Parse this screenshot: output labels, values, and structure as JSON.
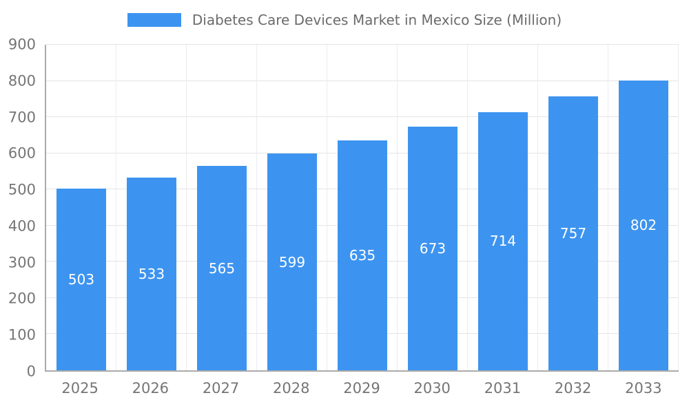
{
  "chart_data": {
    "type": "bar",
    "title": "Diabetes Care Devices Market in Mexico Size (Million)",
    "categories": [
      "2025",
      "2026",
      "2027",
      "2028",
      "2029",
      "2030",
      "2031",
      "2032",
      "2033"
    ],
    "values": [
      503,
      533,
      565,
      599,
      635,
      673,
      714,
      757,
      802
    ],
    "xlabel": "",
    "ylabel": "",
    "ylim": [
      0,
      900
    ],
    "ytick_step": 100,
    "grid": true,
    "legend_position": "top-center",
    "bar_color": "#3d94f0",
    "bar_label_color": "#ffffff",
    "axis_text_color": "#757575"
  }
}
